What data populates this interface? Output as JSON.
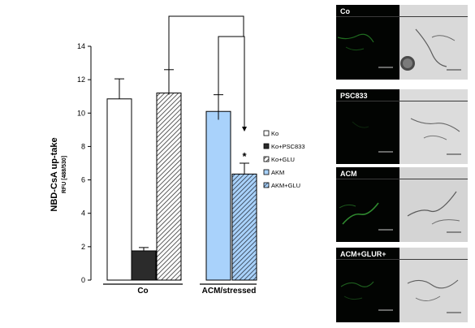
{
  "chart_data": {
    "type": "bar",
    "ylabel": "NBD-CsA up-take",
    "ylabel_sub": "RFU [488/530]",
    "ylim": [
      0,
      14
    ],
    "yticks": [
      "0",
      "2",
      "4",
      "6",
      "8",
      "10",
      "12",
      "14"
    ],
    "groups": [
      "Co",
      "ACM/stressed"
    ],
    "bars": [
      {
        "group": "Co",
        "series": "Ko",
        "value": 10.85,
        "error": 1.2
      },
      {
        "group": "Co",
        "series": "Ko+PSC833",
        "value": 1.75,
        "error": 0.2
      },
      {
        "group": "Co",
        "series": "Ko+GLU",
        "value": 11.2,
        "error": 1.4
      },
      {
        "group": "ACM/stressed",
        "series": "AKM",
        "value": 10.1,
        "error": 1.0
      },
      {
        "group": "ACM/stressed",
        "series": "AKM+GLU",
        "value": 6.35,
        "error": 0.65
      }
    ],
    "legend": [
      {
        "name": "Ko",
        "fill": "white"
      },
      {
        "name": "Ko+PSC833",
        "fill": "dark"
      },
      {
        "name": "Ko+GLU",
        "fill": "hatch"
      },
      {
        "name": "AKM",
        "fill": "blue"
      },
      {
        "name": "AKM+GLU",
        "fill": "blue-hatch"
      }
    ],
    "legend_position": "right",
    "significance_marker": "*",
    "grid": false
  },
  "colors": {
    "dark_bar": "#2b2b2b",
    "blue_bar": "#a9d2fb",
    "hatch_line": "#333333"
  },
  "panels": [
    {
      "label": "Co"
    },
    {
      "label": "PSC833"
    },
    {
      "label": "ACM"
    },
    {
      "label": "ACM+GLUR+"
    }
  ]
}
